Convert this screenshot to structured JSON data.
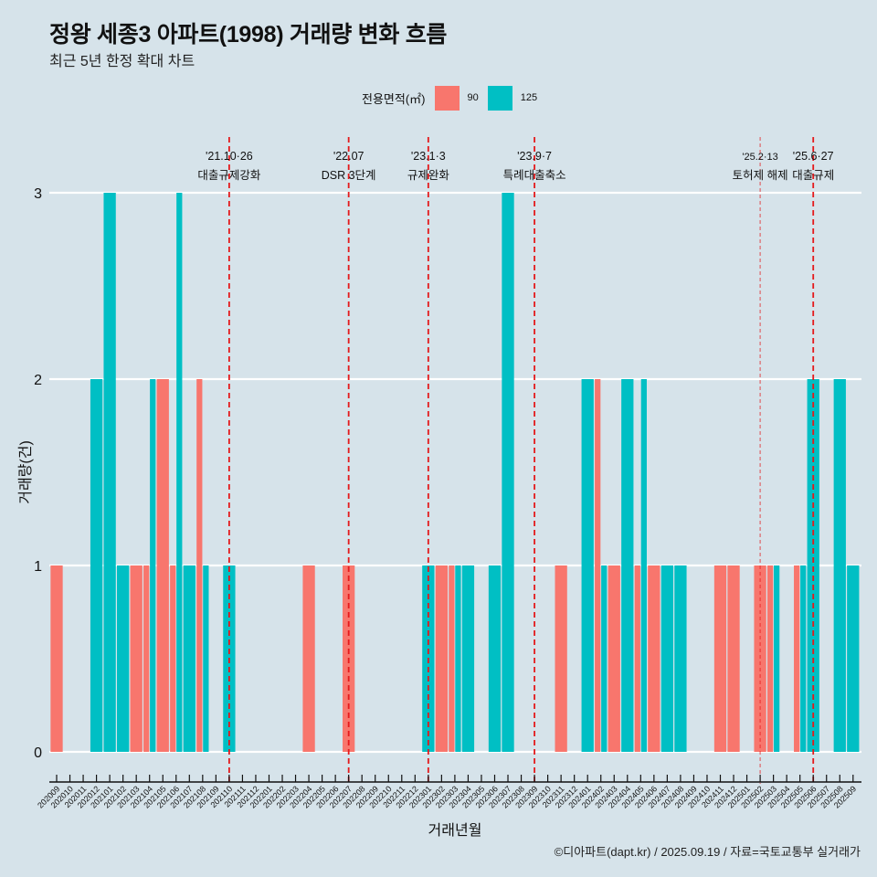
{
  "header": {
    "title": "정왕 세종3 아파트(1998) 거래량 변화 흐름",
    "subtitle": "최근 5년 한정 확대 차트"
  },
  "legend": {
    "title": "전용면적(㎡)",
    "items": [
      {
        "label": "90",
        "color": "#F8766D"
      },
      {
        "label": "125",
        "color": "#00BFC4"
      }
    ]
  },
  "caption": "©디아파트(dapt.kr) / 2025.09.19 / 자료=국토교통부 실거래가",
  "chart_data": {
    "type": "bar",
    "bar_mode": "dodge",
    "title": "정왕 세종3 아파트(1998) 거래량 변화 흐름",
    "subtitle": "최근 5년 한정 확대 차트",
    "xlabel": "거래년월",
    "ylabel": "거래량(건)",
    "ylim": [
      0,
      3
    ],
    "yticks": [
      0,
      1,
      2,
      3
    ],
    "grid": "horizontal-major",
    "legend_position": "top",
    "categories": [
      "202009",
      "202010",
      "202011",
      "202012",
      "202101",
      "202102",
      "202103",
      "202104",
      "202105",
      "202106",
      "202107",
      "202108",
      "202109",
      "202110",
      "202111",
      "202112",
      "202201",
      "202202",
      "202203",
      "202204",
      "202205",
      "202206",
      "202207",
      "202208",
      "202209",
      "202210",
      "202211",
      "202212",
      "202301",
      "202302",
      "202303",
      "202304",
      "202305",
      "202306",
      "202307",
      "202308",
      "202309",
      "202310",
      "202311",
      "202312",
      "202401",
      "202402",
      "202403",
      "202404",
      "202405",
      "202406",
      "202407",
      "202408",
      "202409",
      "202410",
      "202411",
      "202412",
      "202501",
      "202502",
      "202503",
      "202504",
      "202505",
      "202506",
      "202507",
      "202508",
      "202509"
    ],
    "series": [
      {
        "name": "90",
        "color": "#F8766D",
        "values": [
          1,
          0,
          0,
          0,
          0,
          0,
          1,
          1,
          2,
          1,
          0,
          2,
          0,
          0,
          0,
          0,
          0,
          0,
          0,
          1,
          0,
          0,
          1,
          0,
          0,
          0,
          0,
          0,
          0,
          1,
          1,
          0,
          0,
          0,
          0,
          0,
          0,
          0,
          1,
          0,
          0,
          2,
          1,
          0,
          1,
          1,
          0,
          0,
          0,
          0,
          1,
          1,
          0,
          1,
          1,
          0,
          1,
          0,
          0,
          0,
          0
        ]
      },
      {
        "name": "125",
        "color": "#00BFC4",
        "values": [
          0,
          0,
          0,
          2,
          3,
          1,
          0,
          2,
          0,
          3,
          1,
          1,
          0,
          1,
          0,
          0,
          0,
          0,
          0,
          0,
          0,
          0,
          0,
          0,
          0,
          0,
          0,
          0,
          1,
          0,
          1,
          1,
          0,
          1,
          3,
          0,
          0,
          0,
          0,
          0,
          2,
          1,
          0,
          2,
          2,
          0,
          1,
          1,
          0,
          0,
          0,
          0,
          0,
          0,
          1,
          0,
          1,
          2,
          0,
          2,
          1
        ]
      }
    ],
    "annotations": [
      {
        "month": "202110",
        "date": "'21.10·26",
        "label": "대출규제강화",
        "style": "major"
      },
      {
        "month": "202207",
        "date": "'22.07",
        "label": "DSR 3단계",
        "style": "major"
      },
      {
        "month": "202301",
        "date": "'23.1·3",
        "label": "규제완화",
        "style": "major"
      },
      {
        "month": "202309",
        "date": "'23.9·7",
        "label": "특례대출축소",
        "style": "major"
      },
      {
        "month": "202502",
        "date": "'25.2·13",
        "label": "토허제 해제",
        "style": "minor"
      },
      {
        "month": "202506",
        "date": "'25.6·27",
        "label": "대출규제",
        "style": "major"
      }
    ],
    "annotation_color": "#E41A1C"
  }
}
